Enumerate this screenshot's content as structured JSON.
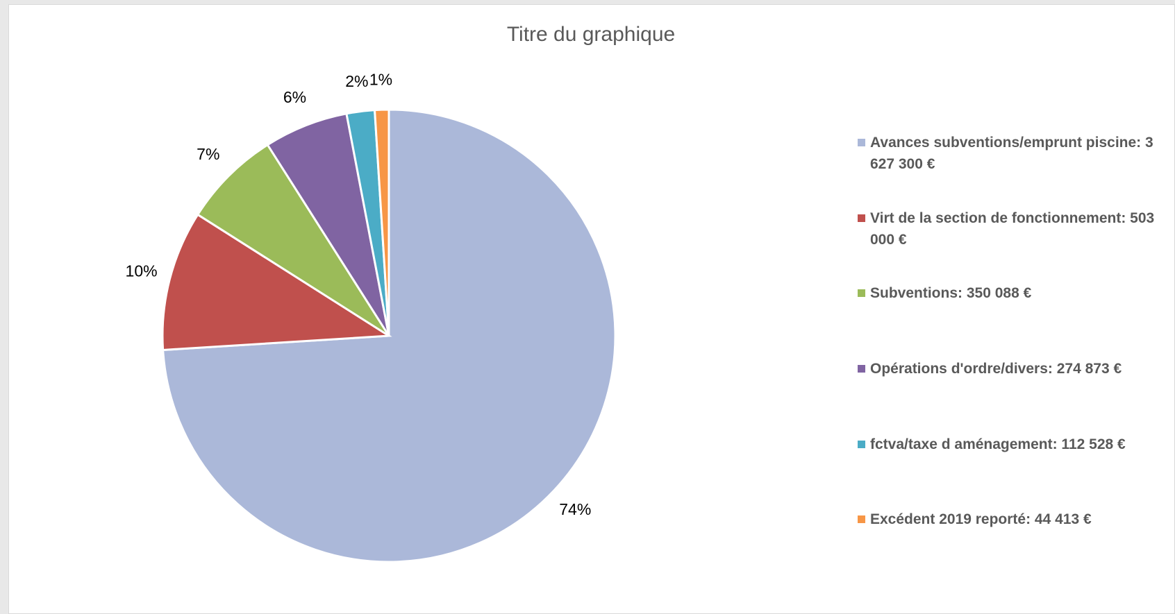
{
  "chart_data": {
    "type": "pie",
    "title": "Titre du graphique",
    "categories": [
      "Avances subventions/emprunt piscine: 3 627 300 €",
      "Virt de la section de fonctionnement: 503 000 €",
      "Subventions: 350 088 €",
      "Opérations d'ordre/divers: 274 873 €",
      "fctva/taxe d aménagement: 112 528 €",
      "Excédent 2019 reporté: 44 413 €"
    ],
    "values": [
      74,
      10,
      7,
      6,
      2,
      1
    ],
    "value_labels": [
      "74%",
      "10%",
      "7%",
      "6%",
      "2%",
      "1%"
    ],
    "colors": [
      "#abb8d9",
      "#c0504d",
      "#9bbb59",
      "#8064a2",
      "#4bacc6",
      "#f79646"
    ],
    "legend": "right"
  }
}
